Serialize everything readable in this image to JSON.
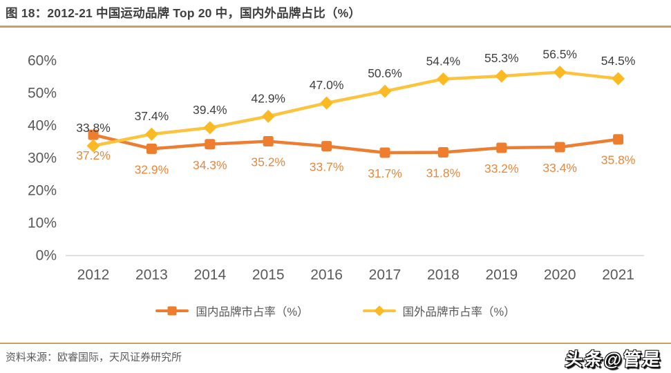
{
  "title": "图 18：2012-21 中国运动品牌 Top 20 中，国内外品牌占比（%）",
  "footer": {
    "source": "资料来源：欧睿国际，天风证券研究所",
    "watermark": "头条@管是"
  },
  "colors": {
    "divider": "#c9a15f",
    "axis_line": "#d5d5d5",
    "tick_text": "#595959",
    "title_text": "#3f3f3f"
  },
  "chart_data": {
    "type": "line",
    "title": "2012-21 中国运动品牌 Top 20 中，国内外品牌占比（%）",
    "categories": [
      "2012",
      "2013",
      "2014",
      "2015",
      "2016",
      "2017",
      "2018",
      "2019",
      "2020",
      "2021"
    ],
    "series": [
      {
        "name": "国内品牌市占率（%）",
        "marker": "square",
        "color": "#ee7e2d",
        "line_color": "#ed7d31",
        "label_color": "#e8873c",
        "label_position": "below",
        "values": [
          37.2,
          32.9,
          34.3,
          35.2,
          33.7,
          31.7,
          31.8,
          33.2,
          33.4,
          35.8
        ]
      },
      {
        "name": "国外品牌市占率（%）",
        "marker": "diamond",
        "color": "#fbba23",
        "line_color": "#fcc43e",
        "label_color": "#3f3f3f",
        "label_position": "above",
        "values": [
          33.8,
          37.4,
          39.4,
          42.9,
          47.0,
          50.6,
          54.4,
          55.3,
          56.5,
          54.5
        ]
      }
    ],
    "ylabel_ticks": [
      "0%",
      "10%",
      "20%",
      "30%",
      "40%",
      "50%",
      "60%"
    ],
    "ylim": [
      0,
      60
    ],
    "xlabel": "",
    "ylabel": "",
    "grid": false,
    "legend_position": "bottom"
  }
}
